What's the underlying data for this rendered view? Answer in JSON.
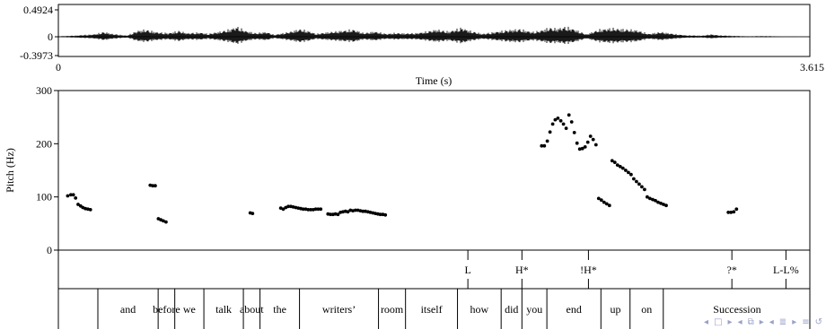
{
  "chart_data": [
    {
      "type": "waveform",
      "yticks": [
        "0.4924",
        "0",
        "-0.3973"
      ],
      "ylim": [
        -0.3973,
        0.4924
      ],
      "xlim": [
        0,
        3.615
      ],
      "xtick_labels": [
        "0",
        "3.615"
      ],
      "xlabel": "Time (s)"
    },
    {
      "type": "scatter",
      "ylabel": "Pitch (Hz)",
      "ylim": [
        0,
        300
      ],
      "yticks": [
        0,
        100,
        200,
        300
      ],
      "xlim": [
        0,
        3.615
      ],
      "series": [
        {
          "x": [
            0.045,
            0.06,
            0.072,
            0.083,
            0.095,
            0.107,
            0.118,
            0.13,
            0.142,
            0.154,
            0.442,
            0.454,
            0.466,
            0.481,
            0.493,
            0.505,
            0.518,
            0.923,
            0.934,
            1.07,
            1.082,
            1.094,
            1.106,
            1.118,
            1.13,
            1.142,
            1.154,
            1.166,
            1.178,
            1.19,
            1.202,
            1.214,
            1.226,
            1.238,
            1.25,
            1.262,
            1.297,
            1.309,
            1.321,
            1.333,
            1.345,
            1.357,
            1.369,
            1.381,
            1.393,
            1.405,
            1.417,
            1.429,
            1.441,
            1.453,
            1.465,
            1.477,
            1.489,
            1.501,
            1.513,
            1.525,
            1.537,
            1.549,
            1.561,
            1.573,
            2.325,
            2.338,
            2.352,
            2.365,
            2.378,
            2.39,
            2.403,
            2.417,
            2.43,
            2.443,
            2.456,
            2.469,
            2.482,
            2.495,
            2.508,
            2.521,
            2.534,
            2.547,
            2.56,
            2.573,
            2.586,
            2.599,
            2.612,
            2.625,
            2.638,
            2.651,
            2.664,
            2.677,
            2.69,
            2.703,
            2.716,
            2.729,
            2.742,
            2.755,
            2.768,
            2.781,
            2.794,
            2.807,
            2.82,
            2.833,
            2.846,
            2.859,
            2.872,
            2.885,
            2.898,
            2.911,
            2.924,
            3.223,
            3.236,
            3.249,
            3.262
          ],
          "y": [
            102,
            104,
            104,
            98,
            86,
            83,
            80,
            78,
            77,
            76,
            122,
            121,
            121,
            59,
            57,
            55,
            53,
            70,
            69,
            79,
            77,
            80,
            82,
            82,
            81,
            80,
            79,
            78,
            77,
            77,
            76,
            76,
            76,
            77,
            77,
            77,
            68,
            67,
            67,
            68,
            67,
            71,
            72,
            73,
            72,
            75,
            74,
            75,
            75,
            74,
            73,
            73,
            72,
            71,
            70,
            69,
            68,
            67,
            67,
            66,
            196,
            196,
            205,
            222,
            237,
            245,
            248,
            243,
            237,
            229,
            254,
            241,
            221,
            201,
            190,
            191,
            194,
            203,
            214,
            208,
            198,
            97,
            94,
            90,
            87,
            84,
            168,
            165,
            160,
            157,
            154,
            150,
            146,
            142,
            134,
            129,
            124,
            119,
            114,
            100,
            97,
            95,
            93,
            90,
            88,
            86,
            84,
            71,
            71,
            72,
            77
          ]
        }
      ]
    }
  ],
  "tones": [
    "L",
    "H*",
    "!H*",
    "?*",
    "L-L%"
  ],
  "words": [
    "and",
    "before",
    "we",
    "talk",
    "about",
    "the",
    "writers’",
    "room",
    "itself",
    "how",
    "did",
    "you",
    "end",
    "up",
    "on",
    "Succession"
  ],
  "icons": [
    "triangle-left-icon",
    "box-icon",
    "triangle-right-icon",
    "triangle-left-icon",
    "frame-icon",
    "triangle-right-icon",
    "triangle-left-icon",
    "align-icon",
    "triangle-right-icon",
    "triangle-left-icon",
    "align-icon",
    "triangle-right-icon",
    "align-icon",
    "loop-icon"
  ]
}
